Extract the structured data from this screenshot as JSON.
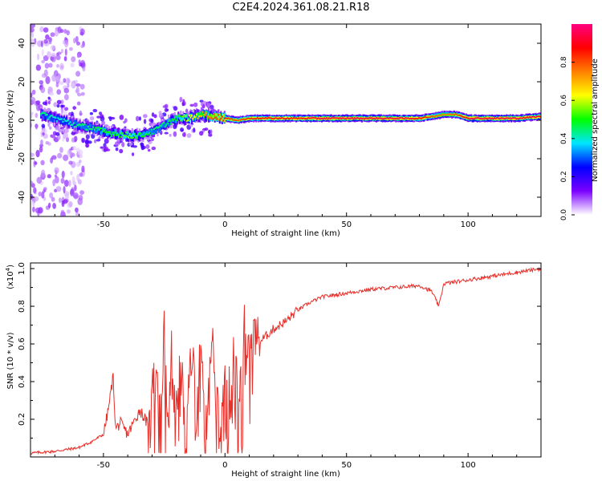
{
  "title": "C2E4.2024.361.08.21.R18",
  "chart_data": [
    {
      "type": "heatmap",
      "xlabel": "Height of straight line (km)",
      "ylabel": "Frequency (Hz)",
      "xlim": [
        -80,
        130
      ],
      "ylim": [
        -50,
        50
      ],
      "xticks": [
        -50,
        0,
        50,
        100
      ],
      "yticks": [
        -40,
        -20,
        0,
        20,
        40
      ],
      "colorbar": {
        "label": "Normalized spectral amplitude",
        "range": [
          0,
          1
        ],
        "ticks": [
          "0.0",
          "0.2",
          "0.4",
          "0.6",
          "0.8"
        ],
        "colormap": [
          "#ffffff",
          "#7b00ff",
          "#0000ff",
          "#00e5ff",
          "#00ff00",
          "#ffff00",
          "#ff8000",
          "#ff0000",
          "#ff0080"
        ]
      },
      "ridge": {
        "x": [
          -76,
          -70,
          -65,
          -60,
          -55,
          -50,
          -45,
          -40,
          -35,
          -30,
          -25,
          -20,
          -15,
          -10,
          -5,
          0,
          5,
          10,
          20,
          30,
          40,
          50,
          60,
          70,
          80,
          85,
          90,
          95,
          100,
          110,
          120,
          130
        ],
        "freq": [
          3,
          1,
          -1,
          -3,
          -4,
          -6,
          -7,
          -8,
          -8,
          -6,
          -2,
          1,
          1,
          3,
          2,
          1,
          0,
          1,
          1,
          1,
          1,
          1,
          1,
          1,
          1,
          2,
          3,
          3,
          1,
          1,
          1,
          2
        ],
        "amplitude": [
          0.45,
          0.4,
          0.4,
          0.45,
          0.45,
          0.5,
          0.5,
          0.55,
          0.5,
          0.45,
          0.45,
          0.5,
          0.6,
          0.7,
          0.8,
          0.85,
          0.8,
          0.85,
          0.9,
          0.9,
          0.95,
          0.95,
          0.95,
          0.95,
          0.9,
          0.8,
          0.75,
          0.8,
          0.95,
          0.95,
          0.95,
          0.9
        ]
      }
    },
    {
      "type": "line",
      "xlabel": "Height of straight line (km)",
      "ylabel": "SNR (10 * v/v)",
      "yscale_label": "(x10^4)",
      "xlim": [
        -80,
        130
      ],
      "ylim": [
        0,
        1.03
      ],
      "xticks": [
        -50,
        0,
        50,
        100
      ],
      "yticks": [
        0.2,
        0.4,
        0.6,
        0.8,
        1.0
      ],
      "series": [
        {
          "color": "#e8302b",
          "x": [
            -80,
            -70,
            -65,
            -60,
            -55,
            -50,
            -48,
            -46,
            -45,
            -43,
            -40,
            -35,
            -32,
            -30,
            -28,
            -26,
            -25,
            -23,
            -22,
            -20,
            -18,
            -16,
            -15,
            -13,
            -12,
            -10,
            -8,
            -6,
            -5,
            -4,
            -2,
            0,
            2,
            4,
            6,
            8,
            10,
            12,
            15,
            20,
            25,
            30,
            35,
            40,
            50,
            60,
            70,
            80,
            85,
            88,
            90,
            95,
            100,
            105,
            110,
            115,
            120,
            125,
            130
          ],
          "y": [
            0.02,
            0.03,
            0.04,
            0.05,
            0.08,
            0.12,
            0.25,
            0.43,
            0.15,
            0.18,
            0.12,
            0.25,
            0.18,
            0.35,
            0.55,
            0.3,
            0.68,
            0.2,
            0.7,
            0.25,
            0.68,
            0.1,
            0.4,
            0.6,
            0.08,
            0.65,
            0.2,
            0.5,
            0.75,
            0.3,
            0.2,
            0.55,
            0.35,
            0.6,
            0.4,
            0.7,
            0.55,
            0.65,
            0.62,
            0.68,
            0.72,
            0.78,
            0.82,
            0.85,
            0.87,
            0.89,
            0.9,
            0.91,
            0.88,
            0.8,
            0.92,
            0.93,
            0.94,
            0.95,
            0.96,
            0.97,
            0.98,
            0.99,
            1.0
          ]
        }
      ]
    }
  ]
}
